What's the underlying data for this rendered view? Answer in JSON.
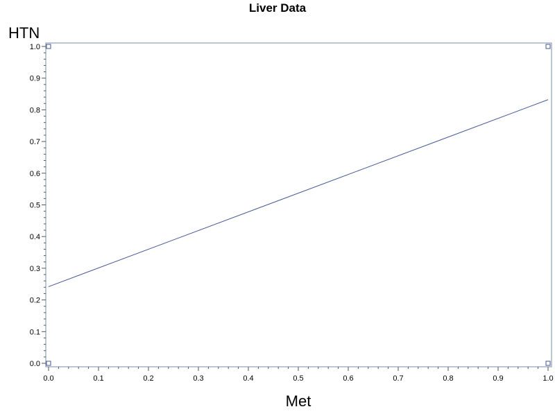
{
  "chart_data": {
    "type": "scatter",
    "title": "Liver Data",
    "xlabel": "Met",
    "ylabel": "HTN",
    "xlim": [
      0,
      1
    ],
    "ylim": [
      0,
      1
    ],
    "grid": false,
    "legend": "none",
    "x_ticks": [
      "0.0",
      "0.1",
      "0.2",
      "0.3",
      "0.4",
      "0.5",
      "0.6",
      "0.7",
      "0.8",
      "0.9",
      "1.0"
    ],
    "y_ticks": [
      "0.0",
      "0.1",
      "0.2",
      "0.3",
      "0.4",
      "0.5",
      "0.6",
      "0.7",
      "0.8",
      "0.9",
      "1.0"
    ],
    "series": [
      {
        "kind": "markers",
        "marker": "square-open",
        "color": "#445694",
        "points": [
          {
            "x": 0,
            "y": 1
          },
          {
            "x": 1,
            "y": 1
          },
          {
            "x": 0,
            "y": 0
          },
          {
            "x": 1,
            "y": 0
          }
        ]
      },
      {
        "kind": "line",
        "color": "#445694",
        "points": [
          {
            "x": 0,
            "y": 0.242
          },
          {
            "x": 1,
            "y": 0.832
          }
        ]
      }
    ],
    "frame_color": "#7a8ba8",
    "tick_color": "#555555"
  }
}
